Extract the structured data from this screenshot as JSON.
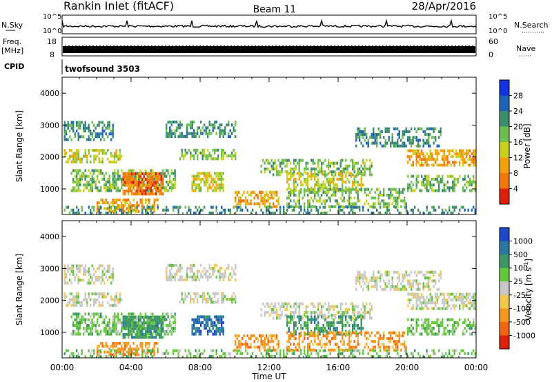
{
  "header": {
    "station": "Rankin Inlet (fitACF)",
    "beam": "Beam 11",
    "date": "28/Apr/2016"
  },
  "nsky_panel": {
    "left_label": "N.Sky",
    "left_ticks": [
      "10^5",
      "10^0"
    ],
    "right_ticks": [
      "10^5",
      "10^0"
    ],
    "right_label": "N.Search"
  },
  "freq_panel": {
    "label": "Freq.",
    "unit": "[MHz]",
    "left_ticks": [
      "18",
      "8"
    ],
    "right_ticks": [
      "60",
      "0"
    ],
    "right_label": "Nave"
  },
  "cpid_panel": {
    "label": "CPID",
    "program": "twofsound 3503"
  },
  "chart_data": [
    {
      "type": "heatmap",
      "name": "power",
      "ylabel": "Slant Range [km]",
      "xlabel": "",
      "y_ticks": [
        "1000",
        "2000",
        "3000",
        "4000"
      ],
      "ylim": [
        200,
        4500
      ],
      "colorbar": {
        "label": "Power [dB]",
        "ticks": [
          "4",
          "8",
          "12",
          "16",
          "20",
          "24",
          "28"
        ],
        "colors": [
          "#1432dc",
          "#1e64b4",
          "#3c8c6e",
          "#6ebe50",
          "#c8d21e",
          "#f5a00a",
          "#f0780a",
          "#dc1e0a"
        ]
      }
    },
    {
      "type": "heatmap",
      "name": "velocity",
      "ylabel": "Slant Range [km]",
      "xlabel": "Time UT",
      "x_ticks": [
        "00:00",
        "04:00",
        "08:00",
        "12:00",
        "16:00",
        "20:00",
        "00:00"
      ],
      "y_ticks": [
        "1000",
        "2000",
        "3000",
        "4000"
      ],
      "ylim": [
        200,
        4500
      ],
      "colorbar": {
        "label": "Velocity [m s",
        "label_sup": "-1",
        "label_close": "]",
        "ticks": [
          "1000",
          "500",
          "100",
          "25",
          "-25",
          "-100",
          "-500",
          "-1000"
        ],
        "colors": [
          "#1e46c8",
          "#2878a0",
          "#3c9664",
          "#64c83c",
          "#c8c8c8",
          "#f0c850",
          "#f5961e",
          "#f06414",
          "#dc1e0a"
        ]
      }
    }
  ]
}
